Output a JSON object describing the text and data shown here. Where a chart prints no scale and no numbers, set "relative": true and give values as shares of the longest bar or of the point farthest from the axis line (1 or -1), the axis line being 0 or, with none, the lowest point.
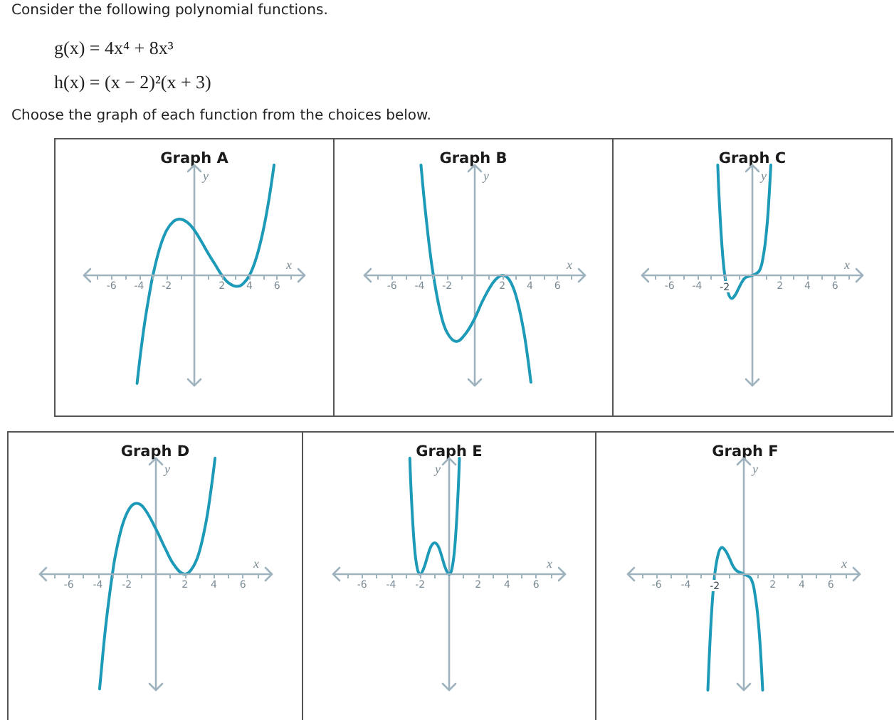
{
  "chart_data": [
    {
      "type": "other",
      "title": "Consider the following polynomial functions.",
      "annotations": [
        "g(x) = 4x⁴ + 8x³",
        "h(x) = (x − 2)²(x + 3)",
        "Choose the graph of each function from the choices below."
      ]
    },
    {
      "type": "line",
      "title": "Graph A",
      "xlabel": "x",
      "ylabel": "y",
      "relative": true,
      "color": "#1c9ab8",
      "xlim": [
        -8,
        8
      ],
      "xticks": [
        {
          "value": -7,
          "label": null
        },
        -6,
        {
          "value": -5,
          "label": null
        },
        -4,
        {
          "value": -3,
          "label": null
        },
        -2,
        {
          "value": -1,
          "label": null
        },
        {
          "value": 1,
          "label": null
        },
        2,
        {
          "value": 3,
          "label": null
        },
        4,
        {
          "value": 5,
          "label": null
        },
        6,
        {
          "value": 7,
          "label": null
        }
      ],
      "x": [
        -4.15,
        -3.9,
        -3.6,
        -3.3,
        -3,
        -2.5,
        -2,
        -1.5,
        -1.08,
        -0.5,
        0,
        0.5,
        1,
        1.5,
        2,
        2.5,
        3.08,
        3.5,
        4,
        4.5,
        5,
        5.4,
        5.78
      ],
      "values": [
        -0.98,
        -0.71,
        -0.43,
        -0.2,
        0,
        0.25,
        0.41,
        0.49,
        0.51,
        0.48,
        0.41,
        0.31,
        0.2,
        0.1,
        0,
        -0.07,
        -0.1,
        -0.08,
        0,
        0.16,
        0.41,
        0.68,
        1
      ]
    },
    {
      "type": "line",
      "title": "Graph B",
      "xlabel": "x",
      "ylabel": "y",
      "relative": true,
      "color": "#1c9ab8",
      "xlim": [
        -8,
        8
      ],
      "xticks": [
        {
          "value": -7,
          "label": null
        },
        -6,
        {
          "value": -5,
          "label": null
        },
        -4,
        {
          "value": -3,
          "label": null
        },
        -2,
        {
          "value": -1,
          "label": null
        },
        {
          "value": 1,
          "label": null
        },
        2,
        {
          "value": 3,
          "label": null
        },
        4,
        {
          "value": 5,
          "label": null
        },
        6,
        {
          "value": 7,
          "label": null
        }
      ],
      "x": [
        -3.9,
        -3.7,
        -3.5,
        -3.25,
        -3,
        -2.5,
        -2,
        -1.33,
        -0.67,
        0,
        0.5,
        1,
        1.5,
        2,
        2.5,
        3,
        3.5,
        3.8,
        4.07
      ],
      "values": [
        1,
        0.73,
        0.49,
        0.22,
        0,
        -0.33,
        -0.52,
        -0.6,
        -0.53,
        -0.39,
        -0.25,
        -0.13,
        -0.04,
        0,
        -0.04,
        -0.19,
        -0.47,
        -0.71,
        -0.97
      ]
    },
    {
      "type": "line",
      "title": "Graph C",
      "xlabel": "x",
      "ylabel": "y",
      "relative": true,
      "color": "#1c9ab8",
      "xlim": [
        -8,
        8
      ],
      "xticks": [
        {
          "value": -7,
          "label": null
        },
        -6,
        {
          "value": -5,
          "label": null
        },
        -4,
        {
          "value": -3,
          "label": null
        },
        -2,
        {
          "value": -1,
          "label": null
        },
        {
          "value": 1,
          "label": null
        },
        2,
        {
          "value": 3,
          "label": null
        },
        4,
        {
          "value": 5,
          "label": null
        },
        6,
        {
          "value": 7,
          "label": null
        }
      ],
      "x": [
        -2.51,
        -2.4,
        -2.2,
        -2,
        -1.75,
        -1.5,
        -1.25,
        -1,
        -0.75,
        -0.5,
        0,
        0.5,
        0.8,
        1,
        1.15,
        1.34
      ],
      "values": [
        1,
        0.68,
        0.26,
        0,
        -0.16,
        -0.21,
        -0.18,
        -0.12,
        -0.06,
        -0.02,
        0,
        0.04,
        0.18,
        0.37,
        0.59,
        1
      ]
    },
    {
      "type": "line",
      "title": "Graph D",
      "xlabel": "x",
      "ylabel": "y",
      "relative": true,
      "color": "#1c9ab8",
      "xlim": [
        -8,
        8
      ],
      "xticks": [
        {
          "value": -7,
          "label": null
        },
        -6,
        {
          "value": -5,
          "label": null
        },
        -4,
        {
          "value": -3,
          "label": null
        },
        -2,
        {
          "value": -1,
          "label": null
        },
        {
          "value": 1,
          "label": null
        },
        2,
        {
          "value": 3,
          "label": null
        },
        4,
        {
          "value": 5,
          "label": null
        },
        6,
        {
          "value": 7,
          "label": null
        }
      ],
      "x": [
        -3.88,
        -3.76,
        -3.53,
        -3.27,
        -3,
        -2.78,
        -2.29,
        -1.8,
        -1.33,
        -0.82,
        0,
        0.65,
        1.31,
        2,
        2.45,
        2.94,
        3.43,
        3.76,
        4.08
      ],
      "values": [
        -0.99,
        -0.83,
        -0.53,
        -0.25,
        0,
        0.17,
        0.43,
        0.57,
        0.61,
        0.57,
        0.39,
        0.22,
        0.07,
        0,
        0.04,
        0.17,
        0.43,
        0.69,
        1
      ]
    },
    {
      "type": "line",
      "title": "Graph E",
      "xlabel": "x",
      "ylabel": "y",
      "relative": true,
      "color": "#1c9ab8",
      "xlim": [
        -8,
        8
      ],
      "xticks": [
        {
          "value": -7,
          "label": null
        },
        -6,
        {
          "value": -5,
          "label": null
        },
        -4,
        {
          "value": -3,
          "label": null
        },
        -2,
        {
          "value": -1,
          "label": null
        },
        {
          "value": 1,
          "label": null
        },
        2,
        {
          "value": 3,
          "label": null
        },
        4,
        {
          "value": 5,
          "label": null
        },
        6,
        {
          "value": 7,
          "label": null
        }
      ],
      "x": [
        -2.71,
        -2.6,
        -2.4,
        -2.2,
        -2,
        -1.75,
        -1.5,
        -1.25,
        -1,
        -0.75,
        -0.5,
        -0.25,
        0,
        0.2,
        0.4,
        0.6,
        0.71
      ],
      "values": [
        1,
        0.66,
        0.25,
        0.05,
        0,
        0.05,
        0.15,
        0.24,
        0.27,
        0.24,
        0.15,
        0.05,
        0,
        0.05,
        0.25,
        0.66,
        1
      ]
    },
    {
      "type": "line",
      "title": "Graph F",
      "xlabel": "x",
      "ylabel": "y",
      "relative": true,
      "color": "#1c9ab8",
      "xlim": [
        -8,
        8
      ],
      "xticks": [
        {
          "value": -7,
          "label": null
        },
        -6,
        {
          "value": -5,
          "label": null
        },
        -4,
        {
          "value": -3,
          "label": null
        },
        -2,
        {
          "value": -1,
          "label": null
        },
        {
          "value": 1,
          "label": null
        },
        2,
        {
          "value": 3,
          "label": null
        },
        4,
        {
          "value": 5,
          "label": null
        },
        6,
        {
          "value": 7,
          "label": null
        }
      ],
      "x": [
        -2.48,
        -2.35,
        -2.2,
        -2,
        -1.75,
        -1.5,
        -1.25,
        -1,
        -0.75,
        -0.5,
        0,
        0.5,
        0.8,
        1,
        1.15,
        1.3
      ],
      "values": [
        -1,
        -0.63,
        -0.29,
        0,
        0.18,
        0.23,
        0.2,
        0.14,
        0.07,
        0.03,
        0,
        -0.04,
        -0.2,
        -0.41,
        -0.66,
        -1
      ]
    }
  ]
}
